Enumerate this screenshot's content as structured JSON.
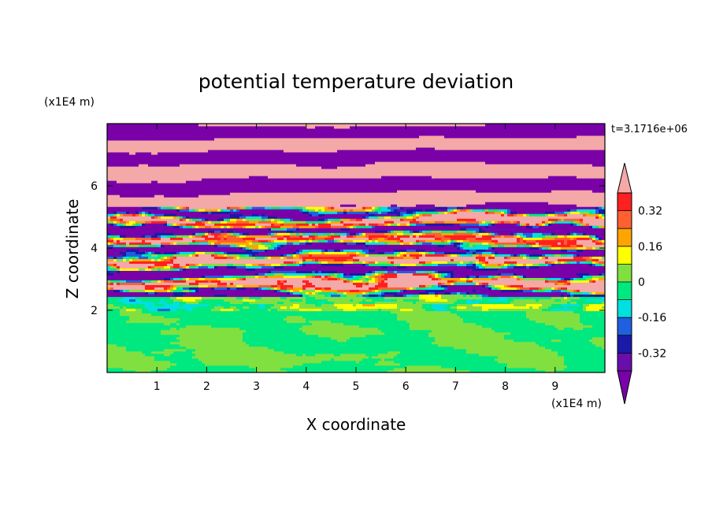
{
  "chart_data": {
    "type": "heatmap",
    "title": "potential temperature deviation",
    "time_label": "t=3.1716e+06",
    "xlabel": "X coordinate",
    "ylabel": "Z coordinate",
    "x_unit": "(x1E4 m)",
    "y_unit": "(x1E4 m)",
    "xlim": [
      0,
      10
    ],
    "ylim": [
      0,
      8
    ],
    "x_ticks": [
      "1",
      "2",
      "3",
      "4",
      "5",
      "6",
      "7",
      "8",
      "9"
    ],
    "y_ticks": [
      "2",
      "4",
      "6"
    ],
    "colorbar": {
      "levels": [
        -0.4,
        -0.32,
        -0.24,
        -0.16,
        -0.08,
        0,
        0.08,
        0.16,
        0.24,
        0.32,
        0.4
      ],
      "tick_labels": [
        "0.32",
        "0.16",
        "0",
        "-0.16",
        "-0.32"
      ],
      "tick_values": [
        0.32,
        0.16,
        0,
        -0.16,
        -0.32
      ],
      "bin_colors": [
        "#6a0dad",
        "#1a1aa8",
        "#2060e0",
        "#00e0e0",
        "#00e880",
        "#80e040",
        "#ffff00",
        "#ffa500",
        "#ff6030",
        "#ff2020"
      ],
      "under_color": "#7a00a8",
      "over_color": "#f4a8a8"
    },
    "layers": [
      {
        "z_range": [
          0,
          2.0
        ],
        "field": "weak perturbation, values between -0.08 and 0.08"
      },
      {
        "z_range": [
          2.0,
          5.3
        ],
        "field": "strong mixed perturbation, values from below -0.4 to above 0.4"
      },
      {
        "z_range": [
          5.3,
          8.0
        ],
        "field": "alternating horizontal bands of values above 0.4 and below -0.4"
      }
    ]
  }
}
